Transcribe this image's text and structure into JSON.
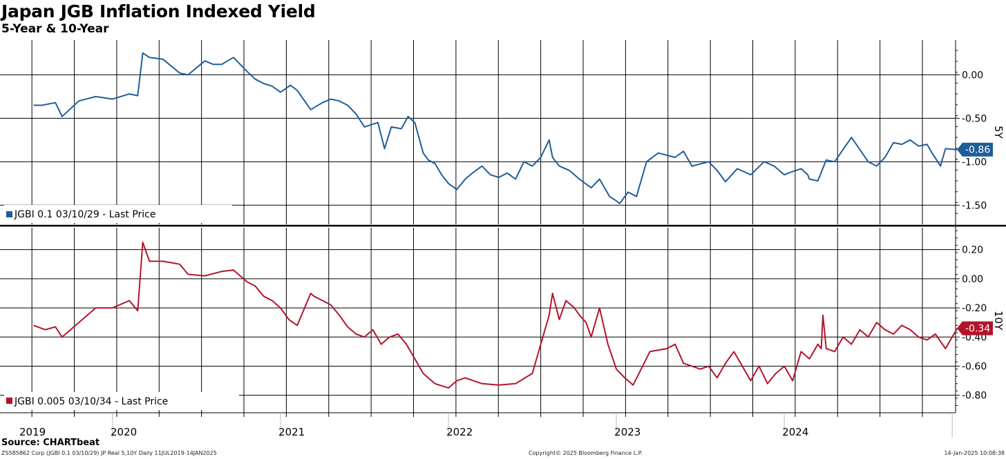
{
  "header": {
    "title": "Japan JGB Inflation Indexed Yield",
    "subtitle": "5-Year & 10-Year"
  },
  "footer": {
    "source": "Source: CHARTbeat",
    "left": "ZS585862 Corp (JGBI 0.1 03/10/29) JP Real 5,10Y  Daily 11JUL2019-14JAN2025",
    "center": "Copyright© 2025 Bloomberg Finance L.P.",
    "right": "14-Jan-2025 10:08:38"
  },
  "colors": {
    "blue": "#1f5d99",
    "red": "#b3142a"
  },
  "chart_data": [
    {
      "type": "line",
      "panel": "top",
      "side_label": "5Y",
      "legend": "JGBI 0.1 03/10/29 - Last Price",
      "last_value_label": "-0.86",
      "ylim": [
        -1.72,
        0.4
      ],
      "yticks": [
        0.0,
        -0.5,
        -1.0,
        -1.5
      ],
      "ytick_labels": [
        "0.00",
        "-0.50",
        "-1.00",
        "-1.50"
      ],
      "x": [
        2019.53,
        2019.58,
        2019.66,
        2019.7,
        2019.8,
        2019.9,
        2020.0,
        2020.1,
        2020.15,
        2020.18,
        2020.22,
        2020.3,
        2020.4,
        2020.45,
        2020.55,
        2020.6,
        2020.65,
        2020.72,
        2020.8,
        2020.85,
        2020.9,
        2020.95,
        2021.0,
        2021.06,
        2021.1,
        2021.18,
        2021.25,
        2021.3,
        2021.35,
        2021.4,
        2021.45,
        2021.5,
        2021.58,
        2021.62,
        2021.66,
        2021.72,
        2021.76,
        2021.8,
        2021.85,
        2021.88,
        2021.92,
        2021.96,
        2022.0,
        2022.05,
        2022.1,
        2022.15,
        2022.2,
        2022.25,
        2022.3,
        2022.35,
        2022.4,
        2022.45,
        2022.5,
        2022.55,
        2022.6,
        2022.62,
        2022.66,
        2022.72,
        2022.78,
        2022.85,
        2022.9,
        2022.96,
        2023.0,
        2023.02,
        2023.07,
        2023.12,
        2023.18,
        2023.25,
        2023.35,
        2023.4,
        2023.45,
        2023.55,
        2023.6,
        2023.65,
        2023.72,
        2023.8,
        2023.88,
        2023.94,
        2024.0,
        2024.04,
        2024.1,
        2024.14,
        2024.15,
        2024.2,
        2024.25,
        2024.3,
        2024.4,
        2024.5,
        2024.55,
        2024.6,
        2024.65,
        2024.7,
        2024.75,
        2024.8,
        2024.85,
        2024.88,
        2024.93,
        2024.96,
        2025.03
      ],
      "values": [
        -0.35,
        -0.35,
        -0.32,
        -0.48,
        -0.3,
        -0.25,
        -0.28,
        -0.22,
        -0.24,
        0.25,
        0.2,
        0.18,
        0.02,
        0.0,
        0.16,
        0.12,
        0.12,
        0.2,
        0.04,
        -0.05,
        -0.1,
        -0.13,
        -0.2,
        -0.12,
        -0.18,
        -0.4,
        -0.32,
        -0.28,
        -0.3,
        -0.35,
        -0.45,
        -0.6,
        -0.55,
        -0.85,
        -0.6,
        -0.62,
        -0.48,
        -0.55,
        -0.9,
        -0.98,
        -1.02,
        -1.15,
        -1.25,
        -1.32,
        -1.2,
        -1.12,
        -1.05,
        -1.15,
        -1.18,
        -1.13,
        -1.2,
        -1.0,
        -1.05,
        -0.95,
        -0.75,
        -0.95,
        -1.05,
        -1.1,
        -1.2,
        -1.3,
        -1.2,
        -1.4,
        -1.45,
        -1.48,
        -1.35,
        -1.4,
        -1.0,
        -0.9,
        -0.95,
        -0.88,
        -1.05,
        -1.0,
        -1.1,
        -1.23,
        -1.08,
        -1.15,
        -1.0,
        -1.05,
        -1.15,
        -1.12,
        -1.08,
        -1.15,
        -1.2,
        -1.22,
        -0.98,
        -1.0,
        -0.72,
        -1.0,
        -1.05,
        -0.95,
        -0.78,
        -0.8,
        -0.75,
        -0.82,
        -0.8,
        -0.9,
        -1.05,
        -0.85,
        -0.86
      ]
    },
    {
      "type": "line",
      "panel": "bottom",
      "side_label": "10Y",
      "legend": "JGBI 0.005 03/10/34 - Last Price",
      "last_value_label": "-0.34",
      "ylim": [
        -0.92,
        0.35
      ],
      "yticks": [
        0.2,
        0.0,
        -0.2,
        -0.4,
        -0.6,
        -0.8
      ],
      "ytick_labels": [
        "0.20",
        "0.00",
        "-0.20",
        "-0.40",
        "-0.60",
        "-0.80"
      ],
      "x": [
        2019.53,
        2019.6,
        2019.66,
        2019.7,
        2019.8,
        2019.9,
        2020.0,
        2020.1,
        2020.15,
        2020.18,
        2020.22,
        2020.3,
        2020.4,
        2020.45,
        2020.55,
        2020.65,
        2020.72,
        2020.8,
        2020.85,
        2020.9,
        2020.95,
        2021.0,
        2021.05,
        2021.1,
        2021.18,
        2021.2,
        2021.25,
        2021.3,
        2021.35,
        2021.4,
        2021.45,
        2021.5,
        2021.55,
        2021.6,
        2021.65,
        2021.7,
        2021.75,
        2021.8,
        2021.85,
        2021.88,
        2021.92,
        2022.0,
        2022.05,
        2022.1,
        2022.2,
        2022.3,
        2022.4,
        2022.5,
        2022.55,
        2022.6,
        2022.62,
        2022.66,
        2022.7,
        2022.75,
        2022.78,
        2022.82,
        2022.85,
        2022.9,
        2022.95,
        2023.0,
        2023.05,
        2023.1,
        2023.2,
        2023.3,
        2023.35,
        2023.4,
        2023.5,
        2023.55,
        2023.6,
        2023.65,
        2023.7,
        2023.8,
        2023.85,
        2023.9,
        2023.95,
        2024.0,
        2024.05,
        2024.1,
        2024.15,
        2024.2,
        2024.22,
        2024.23,
        2024.25,
        2024.3,
        2024.35,
        2024.4,
        2024.45,
        2024.5,
        2024.55,
        2024.6,
        2024.65,
        2024.7,
        2024.75,
        2024.8,
        2024.85,
        2024.9,
        2024.96,
        2025.03
      ],
      "values": [
        -0.32,
        -0.35,
        -0.33,
        -0.4,
        -0.3,
        -0.2,
        -0.2,
        -0.15,
        -0.22,
        0.25,
        0.12,
        0.12,
        0.1,
        0.03,
        0.02,
        0.05,
        0.06,
        -0.02,
        -0.05,
        -0.12,
        -0.15,
        -0.2,
        -0.28,
        -0.32,
        -0.1,
        -0.12,
        -0.15,
        -0.18,
        -0.25,
        -0.33,
        -0.38,
        -0.4,
        -0.35,
        -0.45,
        -0.4,
        -0.38,
        -0.45,
        -0.55,
        -0.65,
        -0.68,
        -0.72,
        -0.75,
        -0.7,
        -0.68,
        -0.72,
        -0.73,
        -0.72,
        -0.65,
        -0.45,
        -0.25,
        -0.1,
        -0.28,
        -0.15,
        -0.2,
        -0.25,
        -0.3,
        -0.4,
        -0.2,
        -0.45,
        -0.62,
        -0.68,
        -0.73,
        -0.5,
        -0.48,
        -0.45,
        -0.58,
        -0.62,
        -0.6,
        -0.68,
        -0.58,
        -0.5,
        -0.7,
        -0.6,
        -0.72,
        -0.65,
        -0.6,
        -0.7,
        -0.5,
        -0.55,
        -0.45,
        -0.48,
        -0.25,
        -0.48,
        -0.5,
        -0.4,
        -0.45,
        -0.35,
        -0.4,
        -0.3,
        -0.35,
        -0.38,
        -0.32,
        -0.35,
        -0.4,
        -0.42,
        -0.38,
        -0.48,
        -0.34
      ]
    }
  ],
  "x_axis": {
    "years": [
      "2019",
      "2020",
      "2021",
      "2022",
      "2023",
      "2024"
    ],
    "year_label_positions": [
      2019.3,
      2019.98,
      2020.98,
      2021.98,
      2022.98,
      2023.98
    ],
    "year_boundaries": [
      2020.0,
      2021.0,
      2022.0,
      2023.0,
      2024.0,
      2025.0
    ],
    "xlim": [
      2019.33,
      2025.02
    ]
  }
}
